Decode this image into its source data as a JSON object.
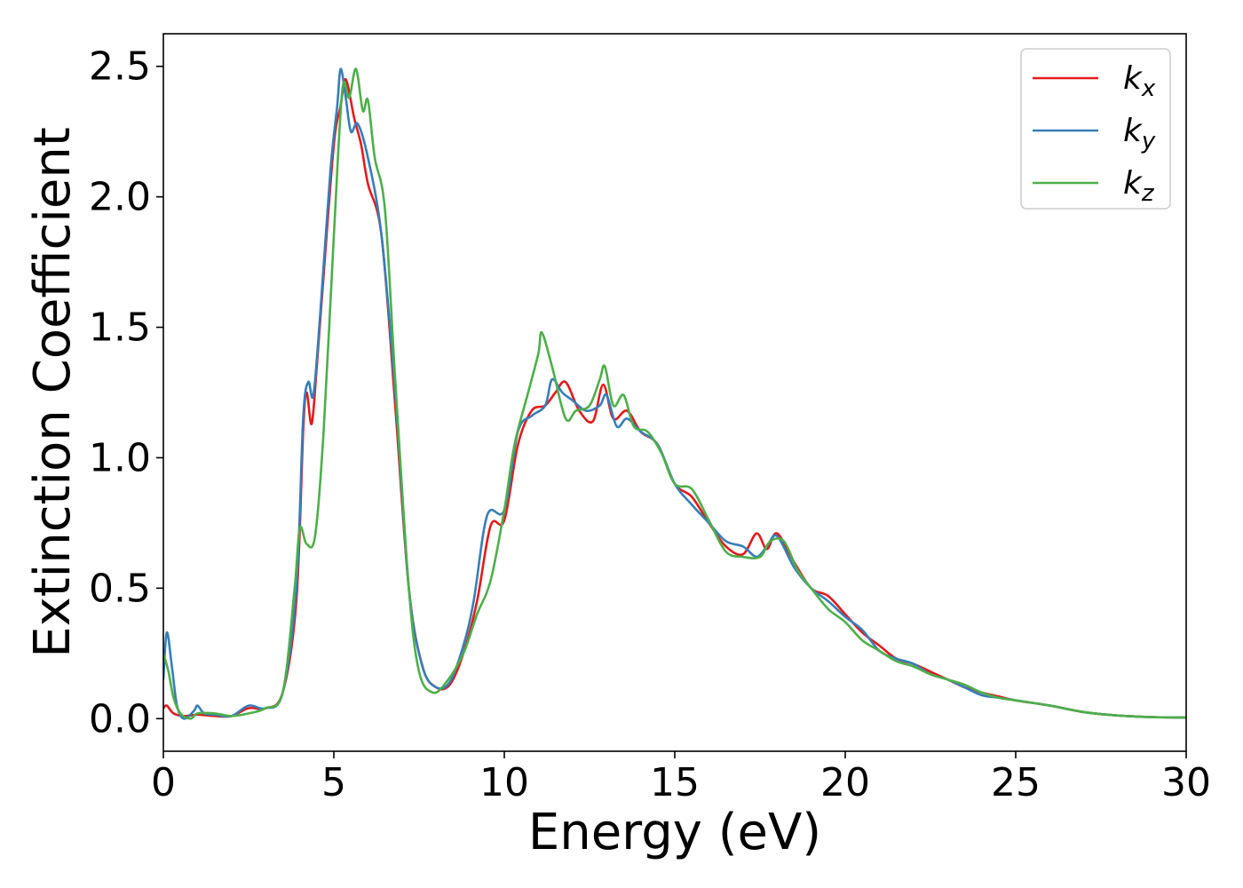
{
  "chart_data": {
    "type": "line",
    "title": "",
    "xlabel": "Energy (eV)",
    "ylabel": "Extinction Coefficient",
    "xlim": [
      0,
      30
    ],
    "ylim": [
      -0.125,
      2.625
    ],
    "xticks": [
      0,
      5,
      10,
      15,
      20,
      25,
      30
    ],
    "xtick_labels": [
      "0",
      "5",
      "10",
      "15",
      "20",
      "25",
      "30"
    ],
    "yticks": [
      0.0,
      0.5,
      1.0,
      1.5,
      2.0,
      2.5
    ],
    "ytick_labels": [
      "0.0",
      "0.5",
      "1.0",
      "1.5",
      "2.0",
      "2.5"
    ],
    "grid": false,
    "legend_position": "top-right",
    "series": [
      {
        "name": "k",
        "subscript": "x",
        "color": "#e41a1c",
        "points": [
          [
            0,
            0.04
          ],
          [
            0.1,
            0.05
          ],
          [
            0.3,
            0.02
          ],
          [
            0.6,
            0.01
          ],
          [
            1.0,
            0.015
          ],
          [
            1.5,
            0.01
          ],
          [
            2.0,
            0.01
          ],
          [
            2.5,
            0.04
          ],
          [
            3.0,
            0.04
          ],
          [
            3.5,
            0.1
          ],
          [
            3.9,
            0.45
          ],
          [
            4.1,
            1.1
          ],
          [
            4.2,
            1.25
          ],
          [
            4.35,
            1.13
          ],
          [
            4.5,
            1.35
          ],
          [
            4.7,
            1.7
          ],
          [
            5.0,
            2.2
          ],
          [
            5.2,
            2.35
          ],
          [
            5.35,
            2.45
          ],
          [
            5.6,
            2.3
          ],
          [
            5.8,
            2.2
          ],
          [
            6.0,
            2.05
          ],
          [
            6.4,
            1.85
          ],
          [
            6.8,
            1.2
          ],
          [
            7.2,
            0.5
          ],
          [
            7.6,
            0.2
          ],
          [
            8.0,
            0.12
          ],
          [
            8.4,
            0.13
          ],
          [
            8.8,
            0.25
          ],
          [
            9.2,
            0.45
          ],
          [
            9.6,
            0.74
          ],
          [
            10.0,
            0.76
          ],
          [
            10.4,
            1.05
          ],
          [
            10.8,
            1.18
          ],
          [
            11.2,
            1.2
          ],
          [
            11.5,
            1.25
          ],
          [
            11.8,
            1.29
          ],
          [
            12.2,
            1.18
          ],
          [
            12.6,
            1.14
          ],
          [
            12.9,
            1.28
          ],
          [
            13.2,
            1.15
          ],
          [
            13.6,
            1.18
          ],
          [
            14.0,
            1.1
          ],
          [
            14.5,
            1.05
          ],
          [
            15.0,
            0.9
          ],
          [
            15.5,
            0.85
          ],
          [
            16.0,
            0.75
          ],
          [
            16.5,
            0.66
          ],
          [
            17.0,
            0.63
          ],
          [
            17.4,
            0.71
          ],
          [
            17.7,
            0.65
          ],
          [
            18.0,
            0.71
          ],
          [
            18.5,
            0.6
          ],
          [
            19.0,
            0.5
          ],
          [
            19.5,
            0.47
          ],
          [
            20.0,
            0.4
          ],
          [
            20.5,
            0.33
          ],
          [
            21.0,
            0.28
          ],
          [
            21.5,
            0.23
          ],
          [
            22.0,
            0.21
          ],
          [
            22.5,
            0.18
          ],
          [
            23.0,
            0.15
          ],
          [
            23.5,
            0.12
          ],
          [
            24.0,
            0.1
          ],
          [
            24.5,
            0.085
          ],
          [
            25.0,
            0.07
          ],
          [
            26.0,
            0.05
          ],
          [
            27.0,
            0.025
          ],
          [
            28.0,
            0.012
          ],
          [
            29.0,
            0.006
          ],
          [
            30.0,
            0.004
          ]
        ]
      },
      {
        "name": "k",
        "subscript": "y",
        "color": "#377eb8",
        "points": [
          [
            0,
            0.15
          ],
          [
            0.1,
            0.33
          ],
          [
            0.25,
            0.2
          ],
          [
            0.4,
            0.05
          ],
          [
            0.6,
            0.0
          ],
          [
            0.9,
            0.03
          ],
          [
            1.0,
            0.05
          ],
          [
            1.2,
            0.02
          ],
          [
            1.5,
            0.015
          ],
          [
            2.0,
            0.01
          ],
          [
            2.5,
            0.05
          ],
          [
            3.0,
            0.04
          ],
          [
            3.5,
            0.1
          ],
          [
            3.9,
            0.5
          ],
          [
            4.1,
            1.15
          ],
          [
            4.25,
            1.29
          ],
          [
            4.4,
            1.24
          ],
          [
            4.6,
            1.55
          ],
          [
            4.9,
            2.1
          ],
          [
            5.1,
            2.35
          ],
          [
            5.2,
            2.49
          ],
          [
            5.35,
            2.38
          ],
          [
            5.5,
            2.25
          ],
          [
            5.7,
            2.28
          ],
          [
            6.0,
            2.15
          ],
          [
            6.4,
            1.85
          ],
          [
            6.8,
            1.25
          ],
          [
            7.2,
            0.5
          ],
          [
            7.6,
            0.2
          ],
          [
            8.0,
            0.12
          ],
          [
            8.4,
            0.14
          ],
          [
            8.8,
            0.28
          ],
          [
            9.1,
            0.45
          ],
          [
            9.5,
            0.78
          ],
          [
            10.0,
            0.8
          ],
          [
            10.4,
            1.1
          ],
          [
            10.8,
            1.16
          ],
          [
            11.2,
            1.2
          ],
          [
            11.4,
            1.3
          ],
          [
            11.7,
            1.25
          ],
          [
            12.0,
            1.22
          ],
          [
            12.4,
            1.18
          ],
          [
            12.8,
            1.2
          ],
          [
            13.0,
            1.24
          ],
          [
            13.3,
            1.12
          ],
          [
            13.6,
            1.15
          ],
          [
            14.0,
            1.1
          ],
          [
            14.5,
            1.05
          ],
          [
            15.0,
            0.9
          ],
          [
            15.5,
            0.82
          ],
          [
            16.0,
            0.75
          ],
          [
            16.5,
            0.68
          ],
          [
            17.0,
            0.66
          ],
          [
            17.4,
            0.62
          ],
          [
            17.7,
            0.66
          ],
          [
            18.0,
            0.7
          ],
          [
            18.5,
            0.58
          ],
          [
            19.0,
            0.5
          ],
          [
            19.5,
            0.45
          ],
          [
            20.0,
            0.39
          ],
          [
            20.5,
            0.34
          ],
          [
            21.0,
            0.26
          ],
          [
            21.5,
            0.23
          ],
          [
            22.0,
            0.21
          ],
          [
            22.5,
            0.17
          ],
          [
            23.0,
            0.15
          ],
          [
            23.5,
            0.12
          ],
          [
            24.0,
            0.09
          ],
          [
            24.5,
            0.08
          ],
          [
            25.0,
            0.07
          ],
          [
            26.0,
            0.05
          ],
          [
            27.0,
            0.025
          ],
          [
            28.0,
            0.012
          ],
          [
            29.0,
            0.006
          ],
          [
            30.0,
            0.004
          ]
        ]
      },
      {
        "name": "k",
        "subscript": "z",
        "color": "#4daf4a",
        "points": [
          [
            0,
            0.25
          ],
          [
            0.15,
            0.18
          ],
          [
            0.3,
            0.08
          ],
          [
            0.5,
            0.02
          ],
          [
            0.8,
            0.0
          ],
          [
            1.0,
            0.02
          ],
          [
            1.5,
            0.02
          ],
          [
            2.0,
            0.01
          ],
          [
            2.5,
            0.02
          ],
          [
            3.0,
            0.04
          ],
          [
            3.5,
            0.1
          ],
          [
            3.85,
            0.5
          ],
          [
            4.0,
            0.73
          ],
          [
            4.2,
            0.67
          ],
          [
            4.45,
            0.7
          ],
          [
            4.7,
            1.1
          ],
          [
            5.0,
            1.85
          ],
          [
            5.25,
            2.41
          ],
          [
            5.45,
            2.38
          ],
          [
            5.65,
            2.49
          ],
          [
            5.85,
            2.33
          ],
          [
            6.0,
            2.37
          ],
          [
            6.2,
            2.15
          ],
          [
            6.5,
            1.95
          ],
          [
            6.8,
            1.3
          ],
          [
            7.2,
            0.5
          ],
          [
            7.5,
            0.18
          ],
          [
            7.9,
            0.1
          ],
          [
            8.3,
            0.14
          ],
          [
            8.8,
            0.25
          ],
          [
            9.2,
            0.4
          ],
          [
            9.6,
            0.53
          ],
          [
            10.0,
            0.8
          ],
          [
            10.3,
            1.05
          ],
          [
            10.7,
            1.25
          ],
          [
            11.0,
            1.4
          ],
          [
            11.1,
            1.48
          ],
          [
            11.4,
            1.35
          ],
          [
            11.8,
            1.15
          ],
          [
            12.1,
            1.18
          ],
          [
            12.5,
            1.2
          ],
          [
            12.8,
            1.3
          ],
          [
            12.95,
            1.35
          ],
          [
            13.2,
            1.2
          ],
          [
            13.5,
            1.24
          ],
          [
            13.8,
            1.12
          ],
          [
            14.2,
            1.1
          ],
          [
            14.6,
            1.02
          ],
          [
            15.0,
            0.9
          ],
          [
            15.5,
            0.88
          ],
          [
            16.0,
            0.76
          ],
          [
            16.5,
            0.64
          ],
          [
            17.0,
            0.62
          ],
          [
            17.5,
            0.62
          ],
          [
            17.8,
            0.68
          ],
          [
            18.2,
            0.68
          ],
          [
            18.6,
            0.57
          ],
          [
            19.0,
            0.5
          ],
          [
            19.5,
            0.42
          ],
          [
            20.0,
            0.37
          ],
          [
            20.5,
            0.3
          ],
          [
            21.0,
            0.26
          ],
          [
            21.5,
            0.22
          ],
          [
            22.0,
            0.2
          ],
          [
            22.5,
            0.17
          ],
          [
            23.0,
            0.15
          ],
          [
            23.5,
            0.13
          ],
          [
            24.0,
            0.1
          ],
          [
            24.5,
            0.08
          ],
          [
            25.0,
            0.07
          ],
          [
            26.0,
            0.05
          ],
          [
            27.0,
            0.025
          ],
          [
            28.0,
            0.012
          ],
          [
            29.0,
            0.006
          ],
          [
            30.0,
            0.004
          ]
        ]
      }
    ]
  }
}
